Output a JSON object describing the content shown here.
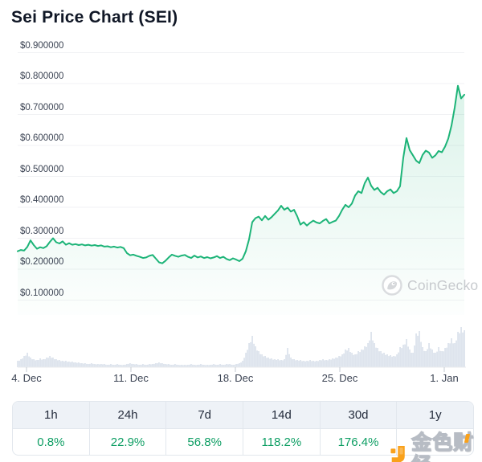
{
  "page": {
    "title": "Sei Price Chart (SEI)"
  },
  "watermarks": {
    "coingecko": {
      "label": "CoinGecko",
      "color": "#c7cace"
    },
    "jinse": {
      "label": "金色财经",
      "accent_color": "#f9a11b"
    }
  },
  "table": {
    "positive_color": "#0d9e63",
    "columns": [
      {
        "label": "1h",
        "value": "0.8%"
      },
      {
        "label": "24h",
        "value": "22.9%"
      },
      {
        "label": "7d",
        "value": "56.8%"
      },
      {
        "label": "14d",
        "value": "118.2%"
      },
      {
        "label": "30d",
        "value": "176.4%"
      },
      {
        "label": "1y",
        "value": ""
      }
    ]
  },
  "chart_data": {
    "type": "area",
    "title": "Sei Price Chart (SEI)",
    "currency": "USD",
    "line_color": "#1db478",
    "fill_color": "#1db478",
    "volume_color": "#cfd9e5",
    "grid_color": "#f1f2f4",
    "ylim": [
      0.1,
      0.9
    ],
    "y_ticks": [
      {
        "value": 0.9,
        "label": "$0.900000"
      },
      {
        "value": 0.8,
        "label": "$0.800000"
      },
      {
        "value": 0.7,
        "label": "$0.700000"
      },
      {
        "value": 0.6,
        "label": "$0.600000"
      },
      {
        "value": 0.5,
        "label": "$0.500000"
      },
      {
        "value": 0.4,
        "label": "$0.400000"
      },
      {
        "value": 0.3,
        "label": "$0.300000"
      },
      {
        "value": 0.2,
        "label": "$0.200000"
      },
      {
        "value": 0.1,
        "label": "$0.100000"
      }
    ],
    "x_ticks": [
      "4. Dec",
      "11. Dec",
      "18. Dec",
      "25. Dec",
      "1. Jan"
    ],
    "x_span_days": 30,
    "series": [
      {
        "name": "SEI price (USD)",
        "values": [
          0.258,
          0.262,
          0.26,
          0.272,
          0.293,
          0.278,
          0.266,
          0.271,
          0.268,
          0.274,
          0.288,
          0.3,
          0.287,
          0.283,
          0.29,
          0.279,
          0.284,
          0.279,
          0.281,
          0.278,
          0.28,
          0.277,
          0.279,
          0.276,
          0.278,
          0.275,
          0.277,
          0.273,
          0.274,
          0.271,
          0.273,
          0.27,
          0.272,
          0.268,
          0.252,
          0.245,
          0.247,
          0.243,
          0.24,
          0.236,
          0.238,
          0.243,
          0.246,
          0.234,
          0.222,
          0.219,
          0.227,
          0.238,
          0.247,
          0.243,
          0.24,
          0.244,
          0.246,
          0.24,
          0.236,
          0.244,
          0.238,
          0.241,
          0.236,
          0.239,
          0.235,
          0.238,
          0.242,
          0.236,
          0.24,
          0.233,
          0.229,
          0.235,
          0.231,
          0.226,
          0.234,
          0.258,
          0.296,
          0.352,
          0.365,
          0.37,
          0.358,
          0.372,
          0.36,
          0.368,
          0.379,
          0.39,
          0.405,
          0.392,
          0.399,
          0.386,
          0.392,
          0.371,
          0.344,
          0.352,
          0.341,
          0.35,
          0.357,
          0.351,
          0.348,
          0.356,
          0.362,
          0.348,
          0.353,
          0.357,
          0.372,
          0.392,
          0.408,
          0.4,
          0.412,
          0.438,
          0.452,
          0.446,
          0.478,
          0.496,
          0.47,
          0.456,
          0.463,
          0.449,
          0.441,
          0.452,
          0.458,
          0.446,
          0.452,
          0.468,
          0.56,
          0.624,
          0.585,
          0.568,
          0.551,
          0.543,
          0.569,
          0.583,
          0.577,
          0.56,
          0.568,
          0.582,
          0.578,
          0.596,
          0.622,
          0.664,
          0.722,
          0.793,
          0.752,
          0.764
        ]
      }
    ],
    "volume": {
      "name": "volume",
      "values": [
        8,
        10,
        14,
        18,
        12,
        10,
        9,
        11,
        10,
        12,
        14,
        12,
        10,
        9,
        8,
        8,
        7,
        7,
        6,
        6,
        5,
        5,
        4,
        5,
        4,
        4,
        4,
        4,
        3,
        4,
        3,
        4,
        3,
        3,
        4,
        5,
        4,
        4,
        3,
        4,
        3,
        4,
        4,
        5,
        6,
        5,
        4,
        4,
        3,
        4,
        3,
        3,
        3,
        3,
        4,
        3,
        3,
        4,
        3,
        3,
        3,
        4,
        3,
        4,
        3,
        4,
        4,
        3,
        4,
        5,
        8,
        18,
        30,
        39,
        26,
        20,
        16,
        14,
        12,
        11,
        10,
        10,
        9,
        10,
        24,
        12,
        10,
        9,
        9,
        8,
        8,
        9,
        8,
        8,
        9,
        10,
        9,
        10,
        11,
        12,
        14,
        16,
        22,
        24,
        18,
        16,
        20,
        22,
        26,
        30,
        44,
        30,
        24,
        20,
        18,
        16,
        15,
        14,
        16,
        25,
        28,
        35,
        22,
        18,
        42,
        45,
        25,
        20,
        30,
        22,
        18,
        25,
        20,
        24,
        30,
        36,
        30,
        44,
        50,
        46
      ]
    }
  }
}
